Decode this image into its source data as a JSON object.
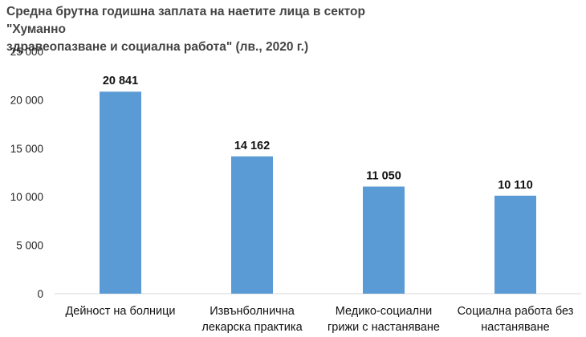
{
  "chart_data": {
    "type": "bar",
    "title_lines": [
      "Средна брутна годишна заплата на наетите лица в сектор \"Хуманно",
      "здравеопазване и социална работа\" (лв., 2020 г.)"
    ],
    "categories": [
      [
        "Дейност на болници"
      ],
      [
        "Извънболнична",
        "лекарска практика"
      ],
      [
        "Медико-социални",
        "грижи с настаняване"
      ],
      [
        "Социална работа без",
        "настаняване"
      ]
    ],
    "values": [
      20841,
      14162,
      11050,
      10110
    ],
    "value_labels": [
      "20 841",
      "14 162",
      "11 050",
      "10 110"
    ],
    "ylim": [
      0,
      25000
    ],
    "yticks": [
      0,
      5000,
      10000,
      15000,
      20000,
      25000
    ],
    "ytick_labels": [
      "0",
      "5 000",
      "10 000",
      "15 000",
      "20 000",
      "25 000"
    ],
    "bar_color": "#5b9bd5",
    "grid": false,
    "legend": "none"
  }
}
